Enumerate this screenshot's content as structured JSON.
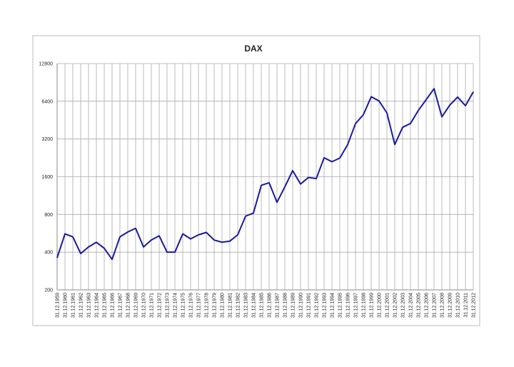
{
  "chart_data": {
    "type": "line",
    "title": "DAX",
    "categories": [
      "31.12.1959",
      "31.12.1960",
      "31.12.1961",
      "31.12.1962",
      "31.12.1963",
      "31.12.1964",
      "31.12.1965",
      "31.12.1966",
      "31.12.1967",
      "31.12.1968",
      "31.12.1969",
      "31.12.1970",
      "31.12.1971",
      "31.12.1972",
      "31.12.1973",
      "31.12.1974",
      "31.12.1975",
      "31.12.1976",
      "31.12.1977",
      "31.12.1978",
      "31.12.1979",
      "31.12.1980",
      "31.12.1981",
      "31.12.1982",
      "31.12.1983",
      "31.12.1984",
      "31.12.1985",
      "31.12.1986",
      "31.12.1987",
      "31.12.1988",
      "31.12.1989",
      "31.12.1990",
      "31.12.1991",
      "31.12.1992",
      "31.12.1993",
      "31.12.1994",
      "31.12.1995",
      "31.12.1996",
      "31.12.1997",
      "31.12.1998",
      "31.12.1999",
      "31.12.2000",
      "31.12.2001",
      "31.12.2002",
      "31.12.2003",
      "31.12.2004",
      "31.12.2005",
      "31.12.2006",
      "31.12.2007",
      "31.12.2008",
      "31.12.2009",
      "31.12.2010",
      "31.12.2011",
      "31.12.2012"
    ],
    "series": [
      {
        "name": "DAX",
        "color": "#1a1a9e",
        "values": [
          360,
          560,
          530,
          390,
          440,
          480,
          430,
          350,
          530,
          580,
          620,
          440,
          500,
          540,
          400,
          400,
          560,
          510,
          550,
          575,
          500,
          480,
          490,
          550,
          775,
          820,
          1366,
          1432,
          1000,
          1328,
          1790,
          1398,
          1578,
          1545,
          2267,
          2107,
          2254,
          2889,
          4250,
          5002,
          6958,
          6434,
          5160,
          2893,
          3965,
          4256,
          5408,
          6597,
          8067,
          4810,
          5957,
          6914,
          5898,
          7612
        ]
      }
    ],
    "ylim": [
      200,
      12800
    ],
    "yticks": [
      200,
      400,
      800,
      1600,
      3200,
      6400,
      12800
    ],
    "log_scale": true,
    "grid": true
  }
}
